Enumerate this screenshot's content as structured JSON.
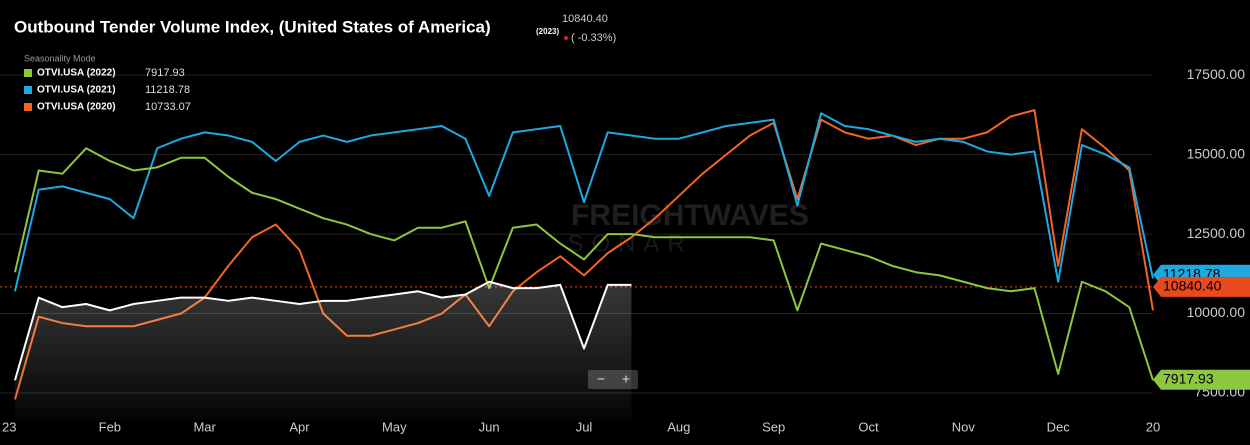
{
  "chart_data": {
    "type": "line",
    "title": "Outbound Tender Volume Index, (United States of America)",
    "header_value": "10840.40",
    "header_change": "( -0.33%)",
    "legend_heading": "Seasonality Mode",
    "watermark": [
      "FREIGHTWAVES",
      "SONAR"
    ],
    "zoom_controls": [
      "−",
      "+"
    ],
    "current_value": 10840.4,
    "current_color": "#e8491d",
    "categories": [
      "23",
      null,
      null,
      null,
      "Feb",
      null,
      null,
      null,
      "Mar",
      null,
      null,
      null,
      "Apr",
      null,
      null,
      null,
      "May",
      null,
      null,
      null,
      "Jun",
      null,
      null,
      null,
      "Jul",
      null,
      null,
      null,
      "Aug",
      null,
      null,
      null,
      "Sep",
      null,
      null,
      null,
      "Oct",
      null,
      null,
      null,
      "Nov",
      null,
      null,
      null,
      "Dec",
      null,
      null,
      null,
      "20"
    ],
    "ylim": [
      6650,
      19550
    ],
    "yticks": [
      {
        "value": 7500,
        "label": "7500.00"
      },
      {
        "value": 10000,
        "label": "10000.00"
      },
      {
        "value": 12500,
        "label": "12500.00"
      },
      {
        "value": 15000,
        "label": "15000.00"
      },
      {
        "value": 17500,
        "label": "17500.00"
      }
    ],
    "grid": true,
    "series": [
      {
        "name": "(2023)",
        "color": "#ffffff",
        "area": true,
        "values": [
          7900,
          10500,
          10200,
          10300,
          10100,
          10300,
          10400,
          10500,
          10500,
          10400,
          10500,
          10400,
          10300,
          10400,
          10400,
          10500,
          10600,
          10700,
          10500,
          10600,
          11000,
          10800,
          10800,
          10900,
          8900,
          10900,
          10900,
          null,
          null,
          null,
          null,
          null,
          null,
          null,
          null,
          null,
          null,
          null,
          null,
          null,
          null,
          null,
          null,
          null,
          null,
          null,
          null,
          null,
          null
        ]
      },
      {
        "name": "OTVI.USA (2022)",
        "color": "#8dc63f",
        "latest": 7917.93,
        "values": [
          11300,
          14500,
          14400,
          15200,
          14800,
          14500,
          14600,
          14900,
          14900,
          14300,
          13800,
          13600,
          13300,
          13000,
          12800,
          12500,
          12300,
          12700,
          12700,
          12900,
          10800,
          12700,
          12800,
          12200,
          11700,
          12500,
          12500,
          12400,
          12400,
          12400,
          12400,
          12400,
          12300,
          10100,
          12200,
          12000,
          11800,
          11500,
          11300,
          11200,
          11000,
          10800,
          10700,
          10800,
          8100,
          11000,
          10700,
          10200,
          7900
        ]
      },
      {
        "name": "OTVI.USA (2021)",
        "color": "#1fa9e1",
        "latest": 11218.78,
        "values": [
          10700,
          13900,
          14000,
          13800,
          13600,
          13000,
          15200,
          15500,
          15700,
          15600,
          15400,
          14800,
          15400,
          15600,
          15400,
          15600,
          15700,
          15800,
          15900,
          15500,
          13700,
          15700,
          15800,
          15900,
          13500,
          15700,
          15600,
          15500,
          15500,
          15700,
          15900,
          16000,
          16100,
          13400,
          16300,
          15900,
          15800,
          15600,
          15400,
          15500,
          15400,
          15100,
          15000,
          15100,
          11000,
          15300,
          15000,
          14600,
          11100
        ]
      },
      {
        "name": "OTVI.USA (2020)",
        "color": "#f26522",
        "latest": 10733.07,
        "values": [
          7300,
          9900,
          9700,
          9600,
          9600,
          9600,
          9800,
          10000,
          10500,
          11500,
          12400,
          12800,
          12000,
          10000,
          9300,
          9300,
          9500,
          9700,
          10000,
          10600,
          9600,
          10700,
          11300,
          11800,
          11200,
          11900,
          12400,
          13000,
          13700,
          14400,
          15000,
          15600,
          16000,
          13600,
          16100,
          15700,
          15500,
          15600,
          15300,
          15500,
          15500,
          15700,
          16200,
          16400,
          11500,
          15800,
          15200,
          14500,
          10100
        ]
      }
    ]
  }
}
